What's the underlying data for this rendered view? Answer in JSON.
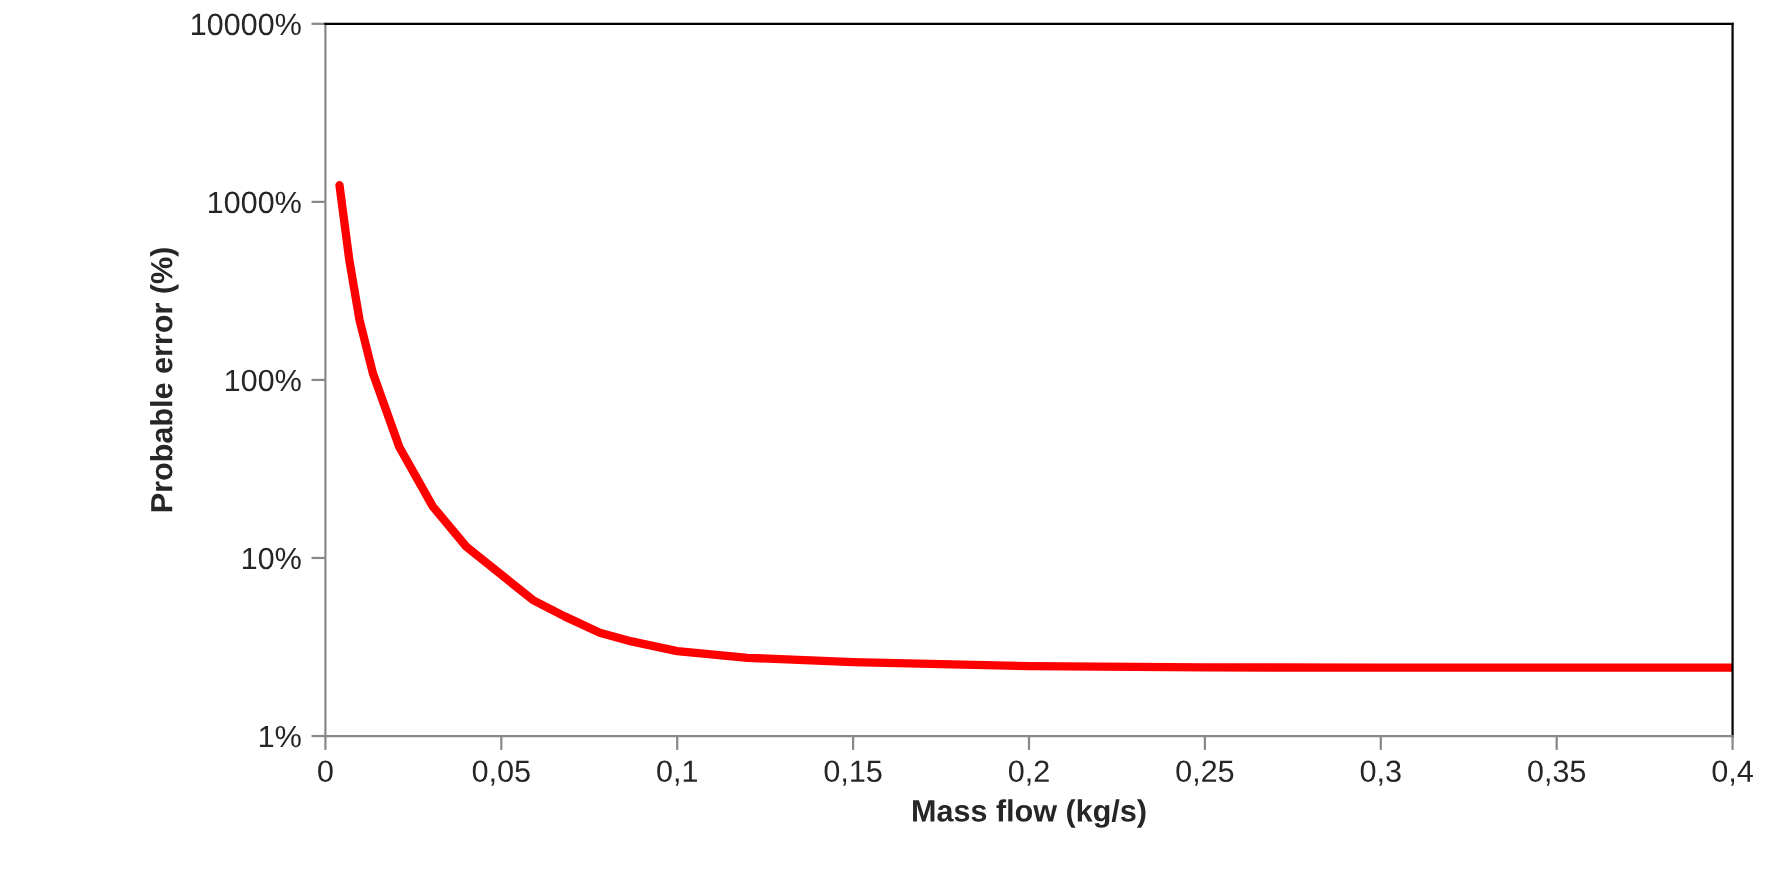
{
  "chart_data": {
    "type": "line",
    "xlabel": "Mass flow (kg/s)",
    "ylabel": "Probable error (%)",
    "log": "y",
    "grid": false,
    "marker": "none",
    "line_style": "solid",
    "xlim": [
      0,
      0.4
    ],
    "xticks": [
      0,
      {
        "value": 0.05,
        "label": "0,05"
      },
      {
        "value": 0.1,
        "label": "0,1"
      },
      {
        "value": 0.15,
        "label": "0,15"
      },
      {
        "value": 0.2,
        "label": "0,2"
      },
      {
        "value": 0.25,
        "label": "0,25"
      },
      {
        "value": 0.3,
        "label": "0,3"
      },
      {
        "value": 0.35,
        "label": "0,35"
      },
      {
        "value": 0.4,
        "label": "0,4"
      }
    ],
    "ylim": [
      1,
      10000
    ],
    "yticks": [
      {
        "value": 1,
        "label": "1%"
      },
      {
        "value": 10,
        "label": "10%"
      },
      {
        "value": 100,
        "label": "100%"
      },
      {
        "value": 1000,
        "label": "1000%"
      },
      {
        "value": 10000,
        "label": "10000%"
      }
    ],
    "series": [
      {
        "color": "#ff0000",
        "x": [
          0.004,
          0.0068,
          0.0097,
          0.0135,
          0.021,
          0.0305,
          0.04,
          0.0495,
          0.059,
          0.068,
          0.078,
          0.087,
          0.1,
          0.12,
          0.15,
          0.2,
          0.25,
          0.3,
          0.35,
          0.4
        ],
        "values": [
          1240,
          470,
          217,
          109,
          42,
          19.5,
          11.6,
          8.2,
          5.8,
          4.7,
          3.8,
          3.4,
          3.0,
          2.75,
          2.6,
          2.47,
          2.43,
          2.42,
          2.42,
          2.42
        ]
      }
    ]
  }
}
